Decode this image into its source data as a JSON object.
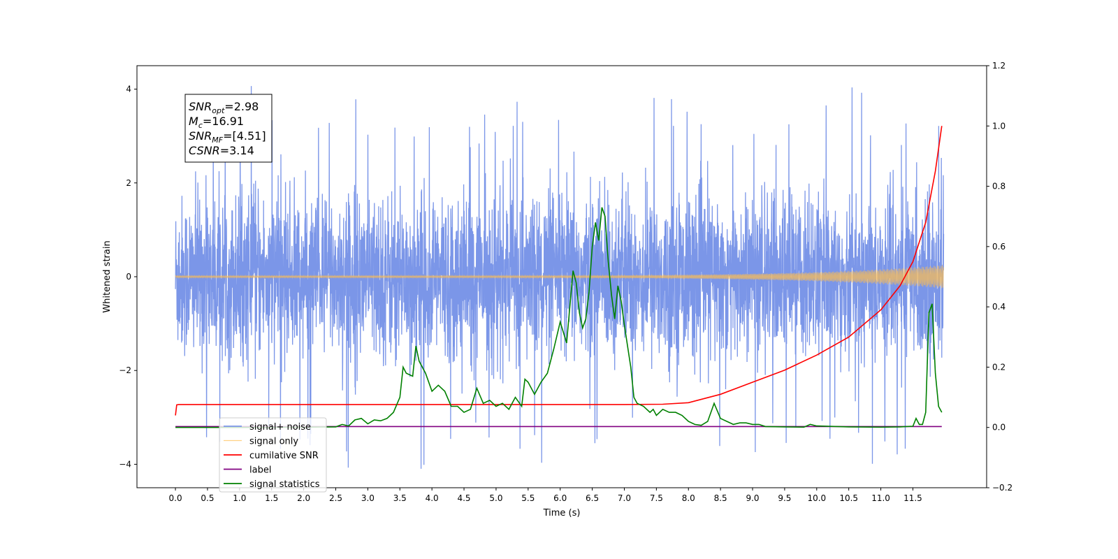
{
  "chart_data": {
    "type": "line",
    "xlabel": "Time (s)",
    "ylabel": "Whitened strain",
    "xlim": [
      -0.6,
      12.65
    ],
    "ylim": [
      -4.5,
      4.5
    ],
    "y2lim": [
      -0.2,
      1.2
    ],
    "x_ticks": [
      "0.0",
      "0.5",
      "1.0",
      "1.5",
      "2.0",
      "2.5",
      "3.0",
      "3.5",
      "4.0",
      "4.5",
      "5.0",
      "5.5",
      "6.0",
      "6.5",
      "7.0",
      "7.5",
      "8.0",
      "8.5",
      "9.0",
      "9.5",
      "10.0",
      "10.5",
      "11.0",
      "11.5"
    ],
    "y_ticks": [
      "4",
      "2",
      "0",
      "−2",
      "−4"
    ],
    "y2_ticks": [
      "1.2",
      "1.0",
      "0.8",
      "0.6",
      "0.4",
      "0.2",
      "0.0",
      "−0.2"
    ],
    "grid": false,
    "legend_position": "lower-left",
    "annotation": {
      "lines": [
        {
          "sym": "SNR",
          "sub": "opt",
          "value": "=2.98"
        },
        {
          "sym": "M",
          "sub": "c",
          "value": "=16.91"
        },
        {
          "sym": "SNR",
          "sub": "MF",
          "value": "=[4.51]"
        },
        {
          "sym": "CSNR",
          "sub": "",
          "value": "=3.14"
        }
      ]
    },
    "series": [
      {
        "name": "signal+ noise",
        "color": "#7b96e8",
        "axis": "left",
        "kind": "noise",
        "x_range": [
          0.0,
          11.98
        ],
        "envelope": [
          -2.4,
          2.4
        ],
        "max": 4.1,
        "min": -4.1
      },
      {
        "name": "signal only",
        "color": "#ffbe50",
        "axis": "left",
        "kind": "chirp",
        "x_range": [
          0.0,
          11.98
        ],
        "amp_start": 0.02,
        "amp_end": 0.25
      },
      {
        "name": "cumilative SNR",
        "color": "#ff0000",
        "axis": "right",
        "x": [
          0.0,
          0.02,
          0.05,
          1.0,
          2.0,
          3.0,
          4.0,
          5.0,
          6.0,
          7.0,
          7.6,
          8.0,
          8.5,
          9.0,
          9.5,
          10.0,
          10.5,
          11.0,
          11.3,
          11.5,
          11.7,
          11.85,
          11.95
        ],
        "y": [
          0.04,
          0.075,
          0.076,
          0.076,
          0.076,
          0.076,
          0.076,
          0.076,
          0.076,
          0.076,
          0.077,
          0.082,
          0.11,
          0.15,
          0.19,
          0.24,
          0.3,
          0.39,
          0.47,
          0.55,
          0.68,
          0.85,
          1.0
        ]
      },
      {
        "name": "label",
        "color": "#800080",
        "axis": "right",
        "x": [
          0.0,
          11.95
        ],
        "y": [
          0.003,
          0.003
        ]
      },
      {
        "name": "signal statistics",
        "color": "#008000",
        "axis": "right",
        "x": [
          0.0,
          1.0,
          2.0,
          2.5,
          2.6,
          2.7,
          2.8,
          2.9,
          3.0,
          3.1,
          3.2,
          3.3,
          3.4,
          3.5,
          3.55,
          3.6,
          3.7,
          3.75,
          3.8,
          3.9,
          4.0,
          4.1,
          4.2,
          4.3,
          4.4,
          4.5,
          4.6,
          4.7,
          4.8,
          4.9,
          5.0,
          5.1,
          5.2,
          5.3,
          5.4,
          5.45,
          5.5,
          5.6,
          5.7,
          5.8,
          5.9,
          6.0,
          6.1,
          6.15,
          6.2,
          6.25,
          6.3,
          6.35,
          6.4,
          6.45,
          6.5,
          6.55,
          6.6,
          6.65,
          6.7,
          6.75,
          6.8,
          6.85,
          6.9,
          6.95,
          7.0,
          7.1,
          7.15,
          7.2,
          7.3,
          7.4,
          7.45,
          7.5,
          7.6,
          7.7,
          7.8,
          7.9,
          8.0,
          8.1,
          8.2,
          8.3,
          8.4,
          8.5,
          8.6,
          8.7,
          8.8,
          8.9,
          9.0,
          9.1,
          9.2,
          9.5,
          9.8,
          9.9,
          10.0,
          10.5,
          11.0,
          11.3,
          11.4,
          11.5,
          11.55,
          11.6,
          11.65,
          11.7,
          11.75,
          11.8,
          11.85,
          11.9,
          11.95
        ],
        "y": [
          0.0,
          0.0,
          0.001,
          0.002,
          0.01,
          0.005,
          0.025,
          0.03,
          0.012,
          0.025,
          0.022,
          0.03,
          0.05,
          0.1,
          0.2,
          0.18,
          0.17,
          0.27,
          0.22,
          0.18,
          0.12,
          0.14,
          0.12,
          0.07,
          0.07,
          0.05,
          0.06,
          0.13,
          0.08,
          0.09,
          0.07,
          0.08,
          0.06,
          0.1,
          0.07,
          0.16,
          0.15,
          0.11,
          0.15,
          0.18,
          0.26,
          0.35,
          0.28,
          0.4,
          0.52,
          0.48,
          0.38,
          0.33,
          0.36,
          0.45,
          0.6,
          0.68,
          0.62,
          0.73,
          0.7,
          0.55,
          0.44,
          0.36,
          0.47,
          0.42,
          0.34,
          0.2,
          0.1,
          0.08,
          0.07,
          0.05,
          0.06,
          0.04,
          0.06,
          0.05,
          0.05,
          0.04,
          0.02,
          0.01,
          0.007,
          0.02,
          0.08,
          0.03,
          0.02,
          0.01,
          0.015,
          0.015,
          0.01,
          0.01,
          0.003,
          0.002,
          0.001,
          0.01,
          0.005,
          0.002,
          0.001,
          0.002,
          0.003,
          0.004,
          0.03,
          0.01,
          0.01,
          0.05,
          0.38,
          0.41,
          0.18,
          0.07,
          0.05
        ]
      }
    ]
  }
}
